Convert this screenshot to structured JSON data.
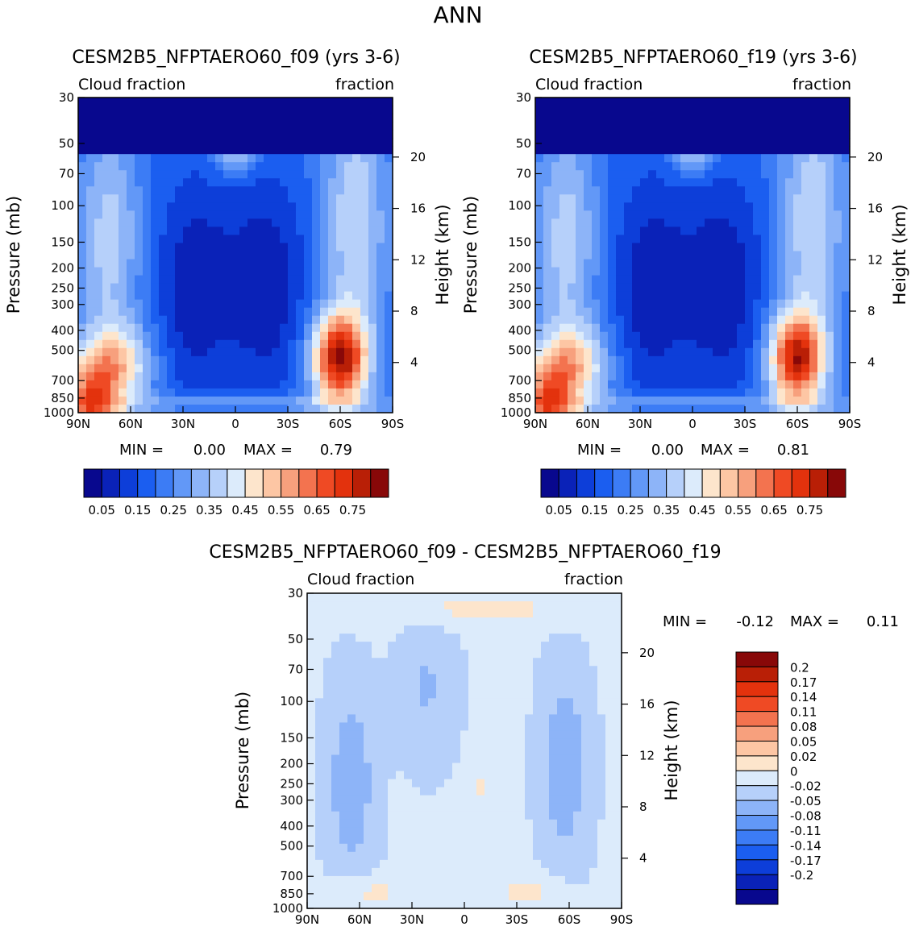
{
  "figure": {
    "title": "ANN"
  },
  "colors": {
    "levels_cb": [
      "#08088e",
      "#0a22b8",
      "#0d3ed9",
      "#1b5ef0",
      "#3c7cf5",
      "#6298f7",
      "#8db4f8",
      "#b6d0fa",
      "#dcebfb",
      "#fde5cc",
      "#fdc6a4",
      "#f7a07d",
      "#f3734f",
      "#ef4a24",
      "#e3320d",
      "#b91f06",
      "#880808"
    ],
    "diff": [
      "#08088e",
      "#0a22b8",
      "#0d3ed9",
      "#1b5ef0",
      "#3c7cf5",
      "#6298f7",
      "#8db4f8",
      "#b6d0fa",
      "#dcebfb",
      "#fde5cc",
      "#fdc6a4",
      "#f7a07d",
      "#f3734f",
      "#ef4a24",
      "#e3320d",
      "#b91f06",
      "#880808"
    ]
  },
  "chart_data": [
    {
      "type": "heatmap",
      "name": "f09",
      "title": "CESM2B5_NFPTAERO60_f09 (yrs 3-6)",
      "left_label": "Cloud fraction",
      "right_label": "fraction",
      "ylabel": "Pressure (mb)",
      "ylabel_right": "Height (km)",
      "x_ticks": [
        "90N",
        "60N",
        "30N",
        "0",
        "30S",
        "60S",
        "90S"
      ],
      "y_ticks": [
        "30",
        "50",
        "70",
        "100",
        "150",
        "200",
        "250",
        "300",
        "400",
        "500",
        "700",
        "850",
        "1000"
      ],
      "y_ticks_right": [
        "20",
        "16",
        "12",
        "8",
        "4"
      ],
      "stats": {
        "min_label": "MIN =",
        "min": "0.00",
        "max_label": "MAX =",
        "max": "0.79"
      },
      "colorbar_labels": [
        "0.05",
        "0.15",
        "0.25",
        "0.35",
        "0.45",
        "0.55",
        "0.65",
        "0.75"
      ],
      "value_range": [
        0.0,
        0.79
      ]
    },
    {
      "type": "heatmap",
      "name": "f19",
      "title": "CESM2B5_NFPTAERO60_f19 (yrs 3-6)",
      "left_label": "Cloud fraction",
      "right_label": "fraction",
      "ylabel": "Pressure (mb)",
      "ylabel_right": "Height (km)",
      "x_ticks": [
        "90N",
        "60N",
        "30N",
        "0",
        "30S",
        "60S",
        "90S"
      ],
      "y_ticks": [
        "30",
        "50",
        "70",
        "100",
        "150",
        "200",
        "250",
        "300",
        "400",
        "500",
        "700",
        "850",
        "1000"
      ],
      "y_ticks_right": [
        "20",
        "16",
        "12",
        "8",
        "4"
      ],
      "stats": {
        "min_label": "MIN =",
        "min": "0.00",
        "max_label": "MAX =",
        "max": "0.81"
      },
      "colorbar_labels": [
        "0.05",
        "0.15",
        "0.25",
        "0.35",
        "0.45",
        "0.55",
        "0.65",
        "0.75"
      ],
      "value_range": [
        0.0,
        0.81
      ]
    },
    {
      "type": "heatmap",
      "name": "diff",
      "title": "CESM2B5_NFPTAERO60_f09 - CESM2B5_NFPTAERO60_f19",
      "left_label": "Cloud fraction",
      "right_label": "fraction",
      "ylabel": "Pressure (mb)",
      "ylabel_right": "Height (km)",
      "x_ticks": [
        "90N",
        "60N",
        "30N",
        "0",
        "30S",
        "60S",
        "90S"
      ],
      "y_ticks": [
        "30",
        "50",
        "70",
        "100",
        "150",
        "200",
        "250",
        "300",
        "400",
        "500",
        "700",
        "850",
        "1000"
      ],
      "y_ticks_right": [
        "20",
        "16",
        "12",
        "8",
        "4"
      ],
      "stats": {
        "min_label": "MIN =",
        "min": "-0.12",
        "max_label": "MAX =",
        "max": "0.11"
      },
      "colorbar_labels": [
        "0.2",
        "0.17",
        "0.14",
        "0.11",
        "0.08",
        "0.05",
        "0.02",
        "0",
        "-0.02",
        "-0.05",
        "-0.08",
        "-0.11",
        "-0.14",
        "-0.17",
        "-0.2"
      ],
      "value_range": [
        -0.12,
        0.11
      ]
    }
  ]
}
